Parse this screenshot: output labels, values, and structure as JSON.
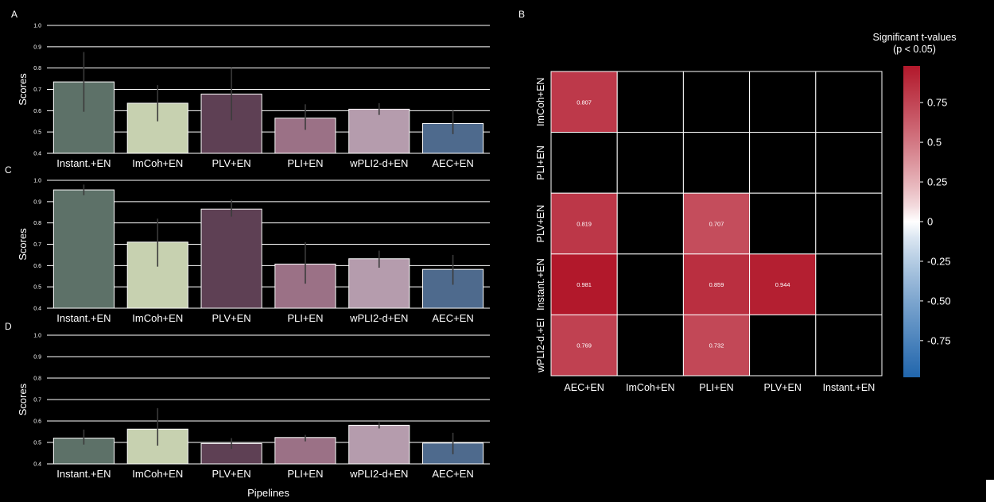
{
  "panels": {
    "a": "A",
    "b": "B",
    "c": "C",
    "d": "D"
  },
  "chart_data": [
    {
      "type": "bar",
      "panel": "A",
      "categories": [
        "Instant.+EN",
        "ImCoh+EN",
        "PLV+EN",
        "PLI+EN",
        "wPLI2-d+EN",
        "AEC+EN"
      ],
      "values": [
        0.735,
        0.635,
        0.678,
        0.565,
        0.607,
        0.54
      ],
      "error_low": [
        0.595,
        0.55,
        0.555,
        0.51,
        0.58,
        0.49
      ],
      "error_high": [
        0.875,
        0.72,
        0.8,
        0.63,
        0.635,
        0.6
      ],
      "colors": [
        "#5d7168",
        "#c7d1b0",
        "#5e4054",
        "#9b7186",
        "#b59cad",
        "#4e6a8d"
      ],
      "ylabel": "Scores",
      "xlabel": "",
      "ylim": [
        0.4,
        1.0
      ],
      "yticks": [
        "0.4",
        "0.5",
        "0.6",
        "0.7",
        "0.8",
        "0.9",
        "1.0"
      ],
      "grid": "horizontal"
    },
    {
      "type": "bar",
      "panel": "C",
      "categories": [
        "Instant.+EN",
        "ImCoh+EN",
        "PLV+EN",
        "PLI+EN",
        "wPLI2-d+EN",
        "AEC+EN"
      ],
      "values": [
        0.955,
        0.71,
        0.865,
        0.607,
        0.632,
        0.582
      ],
      "error_low": [
        0.93,
        0.595,
        0.83,
        0.515,
        0.59,
        0.51
      ],
      "error_high": [
        0.98,
        0.82,
        0.91,
        0.71,
        0.67,
        0.65
      ],
      "colors": [
        "#5d7168",
        "#c7d1b0",
        "#5e4054",
        "#9b7186",
        "#b59cad",
        "#4e6a8d"
      ],
      "ylabel": "Scores",
      "xlabel": "",
      "ylim": [
        0.4,
        1.0
      ],
      "yticks": [
        "0.4",
        "0.5",
        "0.6",
        "0.7",
        "0.8",
        "0.9",
        "1.0"
      ],
      "grid": "horizontal"
    },
    {
      "type": "bar",
      "panel": "D",
      "categories": [
        "Instant.+EN",
        "ImCoh+EN",
        "PLV+EN",
        "PLI+EN",
        "wPLI2-d+EN",
        "AEC+EN"
      ],
      "values": [
        0.52,
        0.562,
        0.495,
        0.523,
        0.58,
        0.497
      ],
      "error_low": [
        0.49,
        0.485,
        0.47,
        0.505,
        0.565,
        0.445
      ],
      "error_high": [
        0.56,
        0.66,
        0.52,
        0.535,
        0.595,
        0.545
      ],
      "colors": [
        "#5d7168",
        "#c7d1b0",
        "#5e4054",
        "#9b7186",
        "#b59cad",
        "#4e6a8d"
      ],
      "ylabel": "Scores",
      "xlabel": "Pipelines",
      "ylim": [
        0.4,
        1.0
      ],
      "yticks": [
        "0.4",
        "0.5",
        "0.6",
        "0.7",
        "0.8",
        "0.9",
        "1.0"
      ],
      "grid": "horizontal"
    },
    {
      "type": "heatmap",
      "panel": "B",
      "rows": [
        "ImCoh+EN",
        "PLI+EN",
        "PLV+EN",
        "Instant.+EN",
        "wPLI2-d.+EI"
      ],
      "columns": [
        "AEC+EN",
        "ImCoh+EN",
        "PLI+EN",
        "PLV+EN",
        "Instant.+EN"
      ],
      "values": [
        [
          0.807,
          null,
          null,
          null,
          null
        ],
        [
          null,
          null,
          null,
          null,
          null
        ],
        [
          0.819,
          null,
          0.707,
          null,
          null
        ],
        [
          0.981,
          null,
          0.859,
          0.944,
          null
        ],
        [
          0.769,
          null,
          0.732,
          null,
          null
        ]
      ],
      "value_labels": [
        [
          "0.807",
          "",
          "",
          "",
          ""
        ],
        [
          "",
          "",
          "",
          "",
          ""
        ],
        [
          "0.819",
          "",
          "0.707",
          "",
          ""
        ],
        [
          "0.981",
          "",
          "0.859",
          "0.944",
          ""
        ],
        [
          "0.769",
          "",
          "0.732",
          "",
          ""
        ]
      ],
      "colorbar": {
        "title_line1": "Significant t-values",
        "title_line2": "(p < 0.05)",
        "range": [
          -0.981,
          0.981
        ],
        "ticks": [
          0.75,
          0.5,
          0.25,
          0,
          -0.25,
          -0.5,
          -0.75
        ],
        "tick_labels": [
          "0.75",
          "0.5",
          "0.25",
          "0",
          "-0.25",
          "-0.50",
          "-0.75"
        ],
        "colors": [
          "#b2182b",
          "#ffffff",
          "#2166ac"
        ]
      },
      "empty_cell_color": "#000000",
      "grid_color": "#ffffff"
    }
  ]
}
